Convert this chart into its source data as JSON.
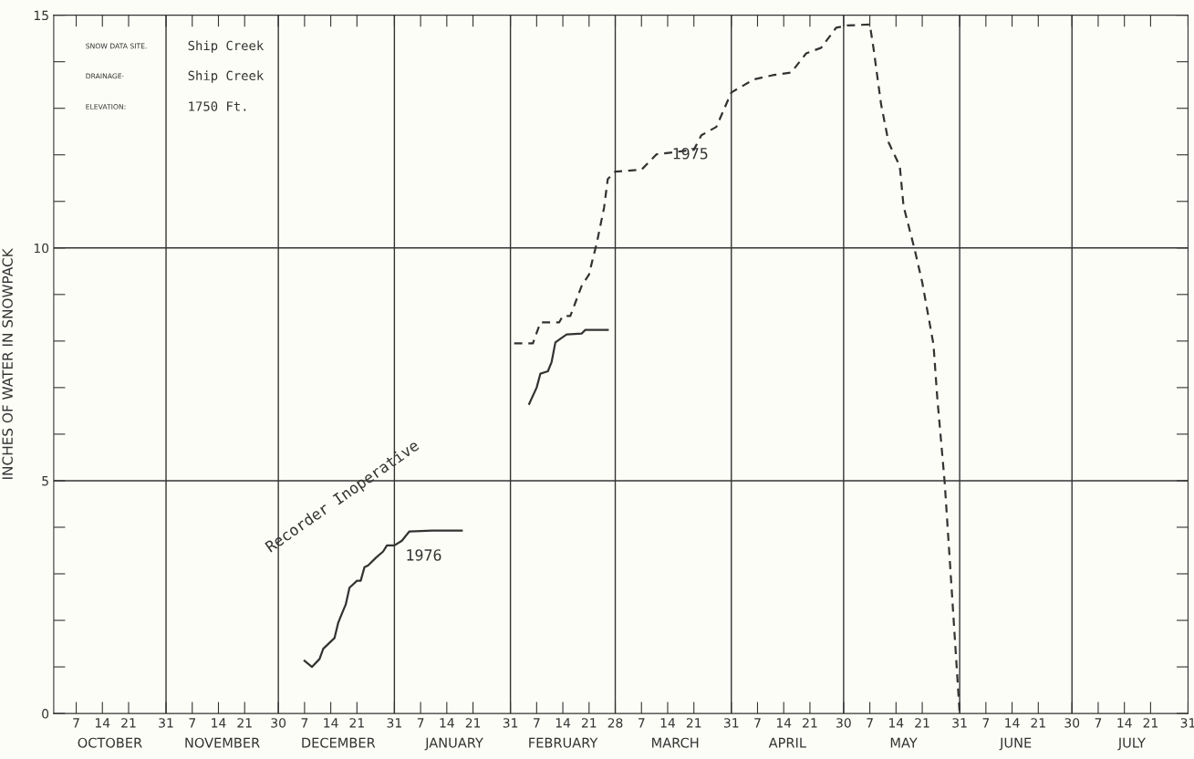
{
  "chart_data": {
    "type": "line",
    "ylabel": "INCHES OF WATER IN SNOWPACK",
    "xlim": [
      "1974-10-01",
      "1975-07-31"
    ],
    "ylim": [
      0,
      15
    ],
    "xticks": [
      {
        "value": "1974-10-07",
        "label": "7"
      },
      {
        "value": "1974-10-14",
        "label": "14"
      },
      {
        "value": "1974-10-21",
        "label": "21"
      },
      {
        "value": "1974-10-31",
        "label": "31"
      },
      {
        "value": "1974-11-07",
        "label": "7"
      },
      {
        "value": "1974-11-14",
        "label": "14"
      },
      {
        "value": "1974-11-21",
        "label": "21"
      },
      {
        "value": "1974-11-30",
        "label": "30"
      },
      {
        "value": "1974-12-07",
        "label": "7"
      },
      {
        "value": "1974-12-14",
        "label": "14"
      },
      {
        "value": "1974-12-21",
        "label": "21"
      },
      {
        "value": "1974-12-31",
        "label": "31"
      },
      {
        "value": "1975-01-07",
        "label": "7"
      },
      {
        "value": "1975-01-14",
        "label": "14"
      },
      {
        "value": "1975-01-21",
        "label": "21"
      },
      {
        "value": "1975-01-31",
        "label": "31"
      },
      {
        "value": "1975-02-07",
        "label": "7"
      },
      {
        "value": "1975-02-14",
        "label": "14"
      },
      {
        "value": "1975-02-21",
        "label": "21"
      },
      {
        "value": "1975-02-28",
        "label": "28"
      },
      {
        "value": "1975-03-07",
        "label": "7"
      },
      {
        "value": "1975-03-14",
        "label": "14"
      },
      {
        "value": "1975-03-21",
        "label": "21"
      },
      {
        "value": "1975-03-31",
        "label": "31"
      },
      {
        "value": "1975-04-07",
        "label": "7"
      },
      {
        "value": "1975-04-14",
        "label": "14"
      },
      {
        "value": "1975-04-21",
        "label": "21"
      },
      {
        "value": "1975-04-30",
        "label": "30"
      },
      {
        "value": "1975-05-07",
        "label": "7"
      },
      {
        "value": "1975-05-14",
        "label": "14"
      },
      {
        "value": "1975-05-21",
        "label": "21"
      },
      {
        "value": "1975-05-31",
        "label": "31"
      },
      {
        "value": "1975-06-07",
        "label": "7"
      },
      {
        "value": "1975-06-14",
        "label": "14"
      },
      {
        "value": "1975-06-21",
        "label": "21"
      },
      {
        "value": "1975-06-30",
        "label": "30"
      },
      {
        "value": "1975-07-07",
        "label": "7"
      },
      {
        "value": "1975-07-14",
        "label": "14"
      },
      {
        "value": "1975-07-21",
        "label": "21"
      },
      {
        "value": "1975-07-31",
        "label": "31"
      }
    ],
    "x2lim": [
      "1974-10-01",
      "1975-07-31"
    ],
    "x2ticks": [
      {
        "value": "1974-10-16",
        "label": "OCTOBER"
      },
      {
        "value": "1974-11-15",
        "label": "NOVEMBER"
      },
      {
        "value": "1974-12-16",
        "label": "DECEMBER"
      },
      {
        "value": "1975-01-16",
        "label": "JANUARY"
      },
      {
        "value": "1975-02-14",
        "label": "FEBRUARY"
      },
      {
        "value": "1975-03-16",
        "label": "MARCH"
      },
      {
        "value": "1975-04-15",
        "label": "APRIL"
      },
      {
        "value": "1975-05-16",
        "label": "MAY"
      },
      {
        "value": "1975-06-15",
        "label": "JUNE"
      },
      {
        "value": "1975-07-16",
        "label": "JULY"
      }
    ],
    "yticks": [
      0,
      {
        "value": 1,
        "label": null
      },
      {
        "value": 2,
        "label": null
      },
      {
        "value": 3,
        "label": null
      },
      {
        "value": 4,
        "label": null
      },
      5,
      {
        "value": 6,
        "label": null
      },
      {
        "value": 7,
        "label": null
      },
      {
        "value": 8,
        "label": null
      },
      {
        "value": 9,
        "label": null
      },
      10,
      {
        "value": 11,
        "label": null
      },
      {
        "value": 12,
        "label": null
      },
      {
        "value": 13,
        "label": null
      },
      {
        "value": 14,
        "label": null
      },
      15
    ],
    "series": [
      {
        "color": "#333333",
        "line_style": "solid",
        "x": [
          "1974-12-07",
          "1974-12-09",
          "1974-12-11",
          "1974-12-12",
          "1974-12-15",
          "1974-12-16",
          "1974-12-17",
          "1974-12-18",
          "1974-12-19",
          "1974-12-21",
          "1974-12-22",
          "1974-12-23",
          "1974-12-24",
          "1974-12-26",
          "1974-12-28",
          "1974-12-29",
          "1974-12-31",
          "1975-01-02",
          "1975-01-04",
          "1975-01-10",
          "1975-01-18",
          "1975-01-31",
          "1975-02-05",
          "1975-02-07",
          "1975-02-08",
          "1975-02-10",
          "1975-02-11",
          "1975-02-12",
          "1975-02-13",
          "1975-02-15",
          "1975-02-19",
          "1975-02-20",
          "1975-02-26"
        ],
        "values": [
          1.13,
          1.0,
          1.17,
          1.39,
          1.62,
          1.95,
          2.15,
          2.34,
          2.7,
          2.85,
          2.85,
          3.14,
          3.18,
          3.34,
          3.48,
          3.61,
          3.61,
          3.71,
          3.91,
          3.93,
          3.93,
          null,
          6.65,
          7.0,
          7.3,
          7.35,
          7.55,
          7.97,
          8.03,
          8.14,
          8.16,
          8.24,
          8.24
        ]
      },
      {
        "color": "#333333",
        "line_style": "dashed",
        "x": [
          "1975-02-01",
          "1975-02-06",
          "1975-02-08",
          "1975-02-13",
          "1975-02-14",
          "1975-02-16",
          "1975-02-19",
          "1975-02-21",
          "1975-02-22",
          "1975-02-23",
          "1975-02-25",
          "1975-02-26",
          "1975-02-28",
          "1975-03-07",
          "1975-03-11",
          "1975-03-21",
          "1975-03-23",
          "1975-03-27",
          "1975-03-31",
          "1975-04-06",
          "1975-04-11",
          "1975-04-16",
          "1975-04-20",
          "1975-04-24",
          "1975-04-28",
          "1975-05-01",
          "1975-05-07",
          "1975-05-08",
          "1975-05-10",
          "1975-05-12",
          "1975-05-15",
          "1975-05-16",
          "1975-05-19",
          "1975-05-21",
          "1975-05-24",
          "1975-05-25",
          "1975-05-27",
          "1975-05-29",
          "1975-05-31"
        ],
        "values": [
          7.95,
          7.95,
          8.4,
          8.4,
          8.54,
          8.54,
          9.18,
          9.43,
          9.77,
          10.08,
          10.86,
          11.48,
          11.64,
          11.68,
          12.01,
          12.11,
          12.42,
          12.6,
          13.34,
          13.62,
          13.71,
          13.77,
          14.18,
          14.3,
          14.73,
          14.78,
          14.8,
          14.28,
          13.09,
          12.27,
          11.76,
          10.9,
          9.96,
          9.26,
          7.93,
          6.8,
          4.96,
          2.5,
          0
        ]
      }
    ],
    "ref_lines": [
      {
        "axis": "x",
        "value": "1974-10-31",
        "color": "#333333"
      },
      {
        "axis": "x",
        "value": "1974-11-30",
        "color": "#333333"
      },
      {
        "axis": "x",
        "value": "1974-12-31",
        "color": "#333333"
      },
      {
        "axis": "x",
        "value": "1975-01-31",
        "color": "#333333"
      },
      {
        "axis": "x",
        "value": "1975-02-28",
        "color": "#333333"
      },
      {
        "axis": "x",
        "value": "1975-03-31",
        "color": "#333333"
      },
      {
        "axis": "x",
        "value": "1975-04-30",
        "color": "#333333"
      },
      {
        "axis": "x",
        "value": "1975-05-31",
        "color": "#333333"
      },
      {
        "axis": "x",
        "value": "1975-06-30",
        "color": "#333333"
      },
      {
        "axis": "y",
        "value": 5,
        "color": "#333333"
      },
      {
        "axis": "y",
        "value": 10,
        "color": "#333333"
      }
    ],
    "annotations": [
      "SNOW DATA SITE.",
      "Ship Creek",
      "DRAINAGE·",
      "Ship Creek",
      "ELEVATION:",
      "1750 Ft.",
      "Recorder Inoperative",
      "1975",
      "1976"
    ],
    "grid": false,
    "marker": "none"
  }
}
